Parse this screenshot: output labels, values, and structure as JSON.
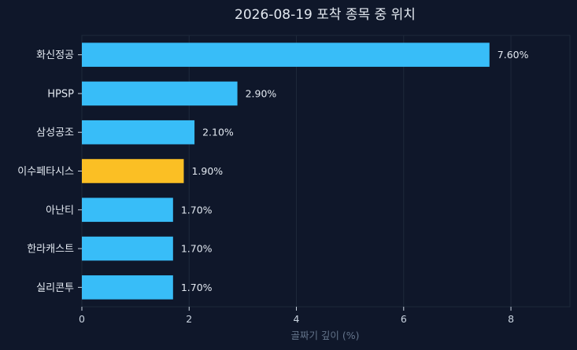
{
  "chart_data": {
    "type": "bar",
    "orientation": "horizontal",
    "title": "2026-08-19 포착 종목 중 위치",
    "xlabel": "골짜기 깊이 (%)",
    "ylabel": "",
    "categories": [
      "화신정공",
      "HPSP",
      "삼성공조",
      "이수페타시스",
      "아난티",
      "한라캐스트",
      "실리콘투"
    ],
    "values": [
      7.6,
      2.9,
      2.1,
      1.9,
      1.7,
      1.7,
      1.7
    ],
    "value_labels": [
      "7.60%",
      "2.90%",
      "2.10%",
      "1.90%",
      "1.70%",
      "1.70%",
      "1.70%"
    ],
    "highlight_category": "이수페타시스",
    "xlim": [
      0,
      9.1
    ],
    "xticks": [
      0,
      2,
      4,
      6,
      8
    ],
    "xtick_labels": [
      "0",
      "2",
      "4",
      "6",
      "8"
    ],
    "grid": true,
    "legend": "none"
  },
  "colors": {
    "background": "#0f172a",
    "bar": "#38bdf8",
    "bar_highlight": "#fbbf24",
    "grid": "#1e293b",
    "spine": "#1e293b",
    "text": "#e2e8f0",
    "axis_title": "#64748b"
  }
}
